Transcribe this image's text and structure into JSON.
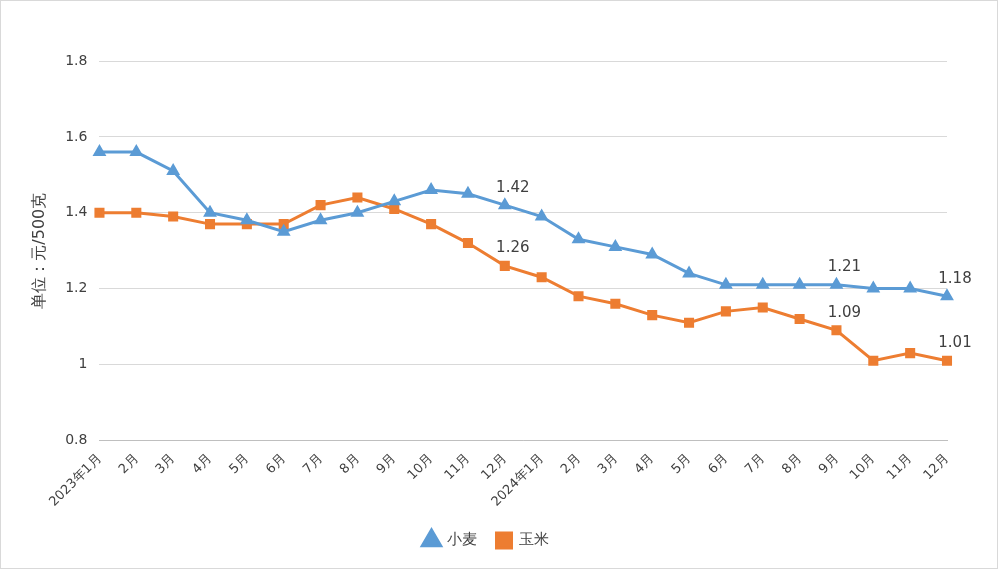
{
  "chart_data": {
    "type": "line",
    "y_label": "单位：元/500克",
    "categories": [
      "2023年1月",
      "2月",
      "3月",
      "4月",
      "5月",
      "6月",
      "7月",
      "8月",
      "9月",
      "10月",
      "11月",
      "12月",
      "2024年1月",
      "2月",
      "3月",
      "4月",
      "5月",
      "6月",
      "7月",
      "8月",
      "9月",
      "10月",
      "11月",
      "12月"
    ],
    "series": [
      {
        "name": "小麦",
        "color": "#5b9bd5",
        "marker": "triangle",
        "values": [
          1.56,
          1.56,
          1.51,
          1.4,
          1.38,
          1.35,
          1.38,
          1.4,
          1.43,
          1.46,
          1.45,
          1.42,
          1.39,
          1.33,
          1.31,
          1.29,
          1.24,
          1.21,
          1.21,
          1.21,
          1.21,
          1.2,
          1.2,
          1.18
        ],
        "value_labels": [
          null,
          null,
          null,
          null,
          null,
          null,
          null,
          null,
          null,
          null,
          null,
          "1.42",
          null,
          null,
          null,
          null,
          null,
          null,
          null,
          null,
          "1.21",
          null,
          null,
          "1.18"
        ]
      },
      {
        "name": "玉米",
        "color": "#ed7d31",
        "marker": "square",
        "values": [
          1.4,
          1.4,
          1.39,
          1.37,
          1.37,
          1.37,
          1.42,
          1.44,
          1.41,
          1.37,
          1.32,
          1.26,
          1.23,
          1.18,
          1.16,
          1.13,
          1.11,
          1.14,
          1.15,
          1.12,
          1.09,
          1.01,
          1.03,
          1.01
        ],
        "value_labels": [
          null,
          null,
          null,
          null,
          null,
          null,
          null,
          null,
          null,
          null,
          null,
          "1.26",
          null,
          null,
          null,
          null,
          null,
          null,
          null,
          null,
          "1.09",
          null,
          null,
          "1.01"
        ]
      }
    ],
    "ylim": [
      0.8,
      1.8
    ],
    "yticks": [
      0.8,
      1,
      1.2,
      1.4,
      1.6,
      1.8
    ],
    "grid": true,
    "legend": "bottom"
  }
}
